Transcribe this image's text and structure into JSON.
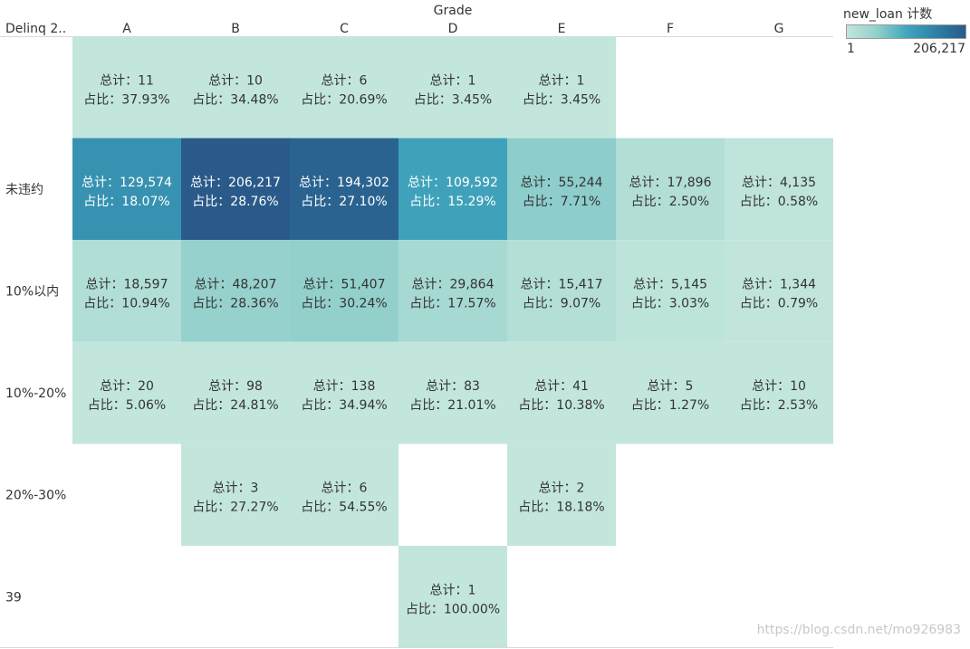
{
  "chart_data": {
    "type": "heatmap",
    "title": "",
    "x_title": "Grade",
    "row_header": "Delinq 2..",
    "x_categories": [
      "A",
      "B",
      "C",
      "D",
      "E",
      "F",
      "G"
    ],
    "y_categories": [
      "",
      "未违约",
      "10%以内",
      "10%-20%",
      "20%-30%",
      "39"
    ],
    "total_label": "总计：",
    "pct_label": "占比：",
    "color_scale": {
      "field": "new_loan 计数",
      "min": 1,
      "max": 206217,
      "min_label": "1",
      "max_label": "206,217",
      "low_color": "#c2e6dc",
      "high_color": "#2a5a8a"
    },
    "cells": [
      {
        "row": 0,
        "col": 0,
        "count": 11,
        "total": "11",
        "pct": "37.93%"
      },
      {
        "row": 0,
        "col": 1,
        "count": 10,
        "total": "10",
        "pct": "34.48%"
      },
      {
        "row": 0,
        "col": 2,
        "count": 6,
        "total": "6",
        "pct": "20.69%"
      },
      {
        "row": 0,
        "col": 3,
        "count": 1,
        "total": "1",
        "pct": "3.45%"
      },
      {
        "row": 0,
        "col": 4,
        "count": 1,
        "total": "1",
        "pct": "3.45%"
      },
      {
        "row": 1,
        "col": 0,
        "count": 129574,
        "total": "129,574",
        "pct": "18.07%"
      },
      {
        "row": 1,
        "col": 1,
        "count": 206217,
        "total": "206,217",
        "pct": "28.76%"
      },
      {
        "row": 1,
        "col": 2,
        "count": 194302,
        "total": "194,302",
        "pct": "27.10%"
      },
      {
        "row": 1,
        "col": 3,
        "count": 109592,
        "total": "109,592",
        "pct": "15.29%"
      },
      {
        "row": 1,
        "col": 4,
        "count": 55244,
        "total": "55,244",
        "pct": "7.71%"
      },
      {
        "row": 1,
        "col": 5,
        "count": 17896,
        "total": "17,896",
        "pct": "2.50%"
      },
      {
        "row": 1,
        "col": 6,
        "count": 4135,
        "total": "4,135",
        "pct": "0.58%"
      },
      {
        "row": 2,
        "col": 0,
        "count": 18597,
        "total": "18,597",
        "pct": "10.94%"
      },
      {
        "row": 2,
        "col": 1,
        "count": 48207,
        "total": "48,207",
        "pct": "28.36%"
      },
      {
        "row": 2,
        "col": 2,
        "count": 51407,
        "total": "51,407",
        "pct": "30.24%"
      },
      {
        "row": 2,
        "col": 3,
        "count": 29864,
        "total": "29,864",
        "pct": "17.57%"
      },
      {
        "row": 2,
        "col": 4,
        "count": 15417,
        "total": "15,417",
        "pct": "9.07%"
      },
      {
        "row": 2,
        "col": 5,
        "count": 5145,
        "total": "5,145",
        "pct": "3.03%"
      },
      {
        "row": 2,
        "col": 6,
        "count": 1344,
        "total": "1,344",
        "pct": "0.79%"
      },
      {
        "row": 3,
        "col": 0,
        "count": 20,
        "total": "20",
        "pct": "5.06%"
      },
      {
        "row": 3,
        "col": 1,
        "count": 98,
        "total": "98",
        "pct": "24.81%"
      },
      {
        "row": 3,
        "col": 2,
        "count": 138,
        "total": "138",
        "pct": "34.94%"
      },
      {
        "row": 3,
        "col": 3,
        "count": 83,
        "total": "83",
        "pct": "21.01%"
      },
      {
        "row": 3,
        "col": 4,
        "count": 41,
        "total": "41",
        "pct": "10.38%"
      },
      {
        "row": 3,
        "col": 5,
        "count": 5,
        "total": "5",
        "pct": "1.27%"
      },
      {
        "row": 3,
        "col": 6,
        "count": 10,
        "total": "10",
        "pct": "2.53%"
      },
      {
        "row": 4,
        "col": 1,
        "count": 3,
        "total": "3",
        "pct": "27.27%"
      },
      {
        "row": 4,
        "col": 2,
        "count": 6,
        "total": "6",
        "pct": "54.55%"
      },
      {
        "row": 4,
        "col": 4,
        "count": 2,
        "total": "2",
        "pct": "18.18%"
      },
      {
        "row": 5,
        "col": 3,
        "count": 1,
        "total": "1",
        "pct": "100.00%"
      }
    ]
  },
  "legend": {
    "title": "new_loan 计数",
    "min_label": "1",
    "max_label": "206,217"
  },
  "watermark": "https://blog.csdn.net/mo926983"
}
